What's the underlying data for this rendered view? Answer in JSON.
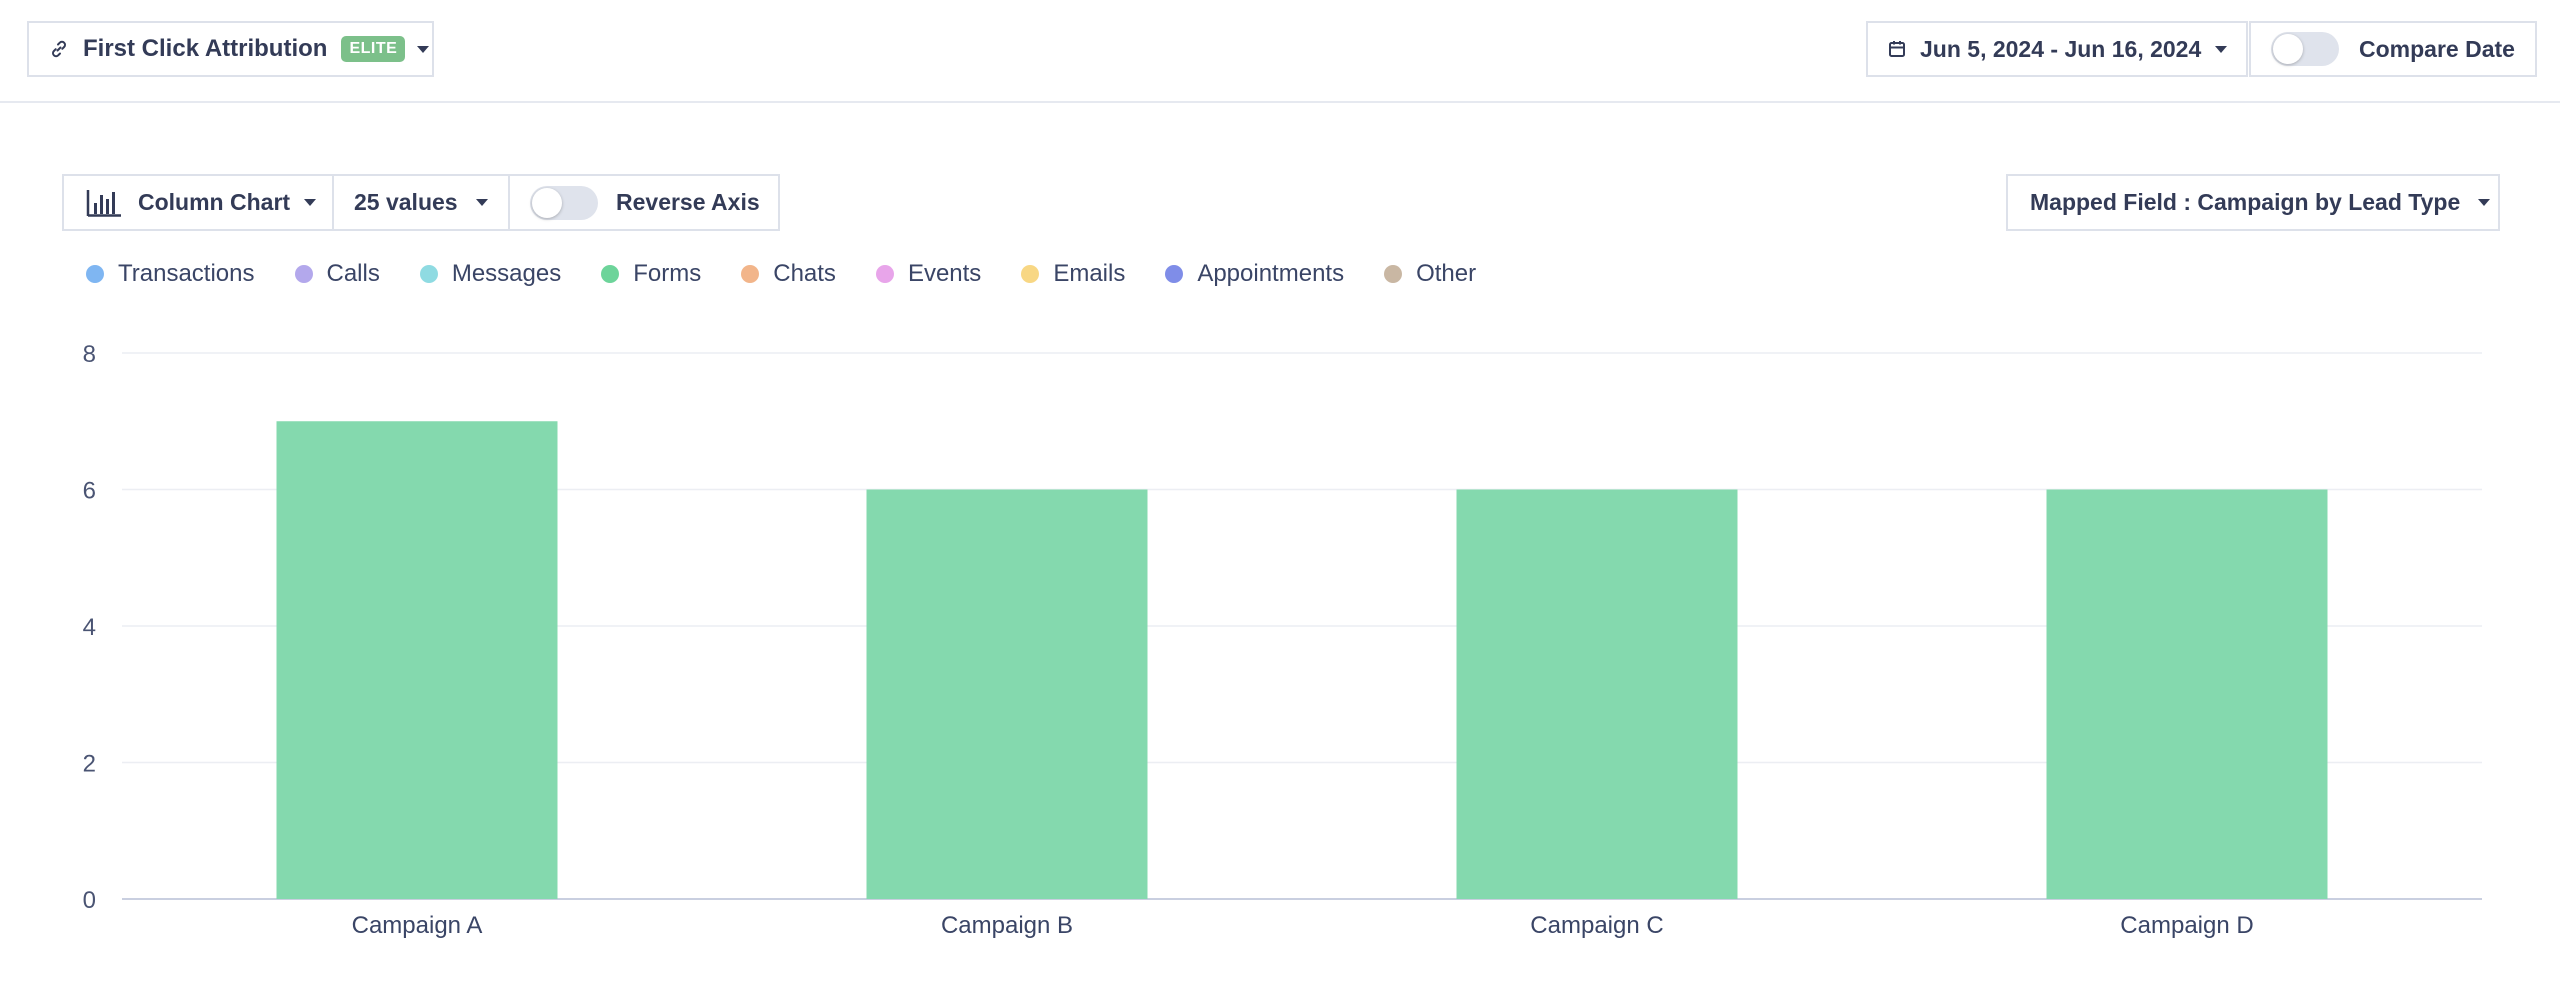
{
  "header": {
    "attribution_label": "First Click Attribution",
    "attribution_badge": "ELITE",
    "date_range": "Jun 5, 2024 - Jun 16, 2024",
    "compare_label": "Compare Date"
  },
  "toolbar": {
    "chart_type": "Column Chart",
    "values_count": "25 values",
    "reverse_axis_label": "Reverse Axis",
    "mapped_field": "Mapped Field : Campaign by Lead Type"
  },
  "legend": [
    {
      "label": "Transactions",
      "color": "#7fb6f2"
    },
    {
      "label": "Calls",
      "color": "#b3a8ec"
    },
    {
      "label": "Messages",
      "color": "#8fdbe2"
    },
    {
      "label": "Forms",
      "color": "#6dd49a"
    },
    {
      "label": "Chats",
      "color": "#f2b58a"
    },
    {
      "label": "Events",
      "color": "#e8a5ea"
    },
    {
      "label": "Emails",
      "color": "#f8d784"
    },
    {
      "label": "Appointments",
      "color": "#7f8de8"
    },
    {
      "label": "Other",
      "color": "#c9b7a3"
    }
  ],
  "chart_data": {
    "type": "bar",
    "categories": [
      "Campaign A",
      "Campaign B",
      "Campaign C",
      "Campaign D"
    ],
    "series": [
      {
        "name": "Forms",
        "values": [
          7,
          6,
          6,
          6
        ],
        "color": "#84d9ae"
      }
    ],
    "ylim": [
      0,
      8
    ],
    "yticks": [
      0,
      2,
      4,
      6,
      8
    ],
    "grid": true,
    "legend_position": "top-left"
  }
}
